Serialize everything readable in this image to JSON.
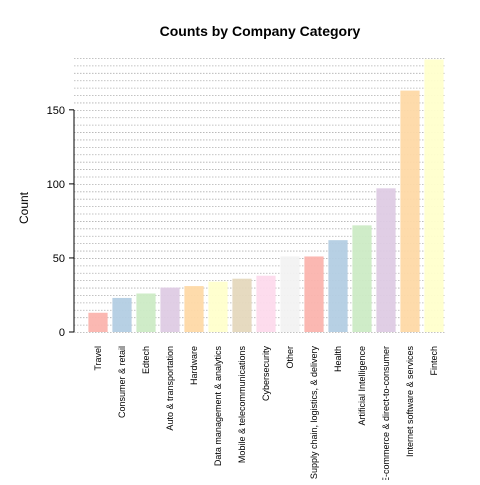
{
  "chart_data": {
    "type": "bar",
    "title": "Counts by Company Category",
    "xlabel": "",
    "ylabel": "Count",
    "ylim": [
      0,
      185
    ],
    "yticks": [
      0,
      50,
      100,
      150
    ],
    "grid": true,
    "legend": "none",
    "categories": [
      "Travel",
      "Consumer & retail",
      "Edtech",
      "Auto & transportation",
      "Hardware",
      "Data management & analytics",
      "Mobile & telecommunications",
      "Cybersecurity",
      "Other",
      "Supply chain, logistics, & delivery",
      "Health",
      "Artificial Intelligence",
      "E-commerce & direct-to-consumer",
      "Internet software & services",
      "Fintech"
    ],
    "values": [
      13,
      23,
      26,
      30,
      31,
      34,
      36,
      38,
      51,
      51,
      62,
      72,
      97,
      163,
      184
    ],
    "colors": [
      "#FBB4AE",
      "#B3CDE3",
      "#CCEBC5",
      "#DECBE4",
      "#FED9A6",
      "#FFFFCC",
      "#E5D8BD",
      "#FDDAEC",
      "#F2F2F2",
      "#FBB4AE",
      "#B3CDE3",
      "#CCEBC5",
      "#DECBE4",
      "#FED9A6",
      "#FFFFCC"
    ]
  }
}
